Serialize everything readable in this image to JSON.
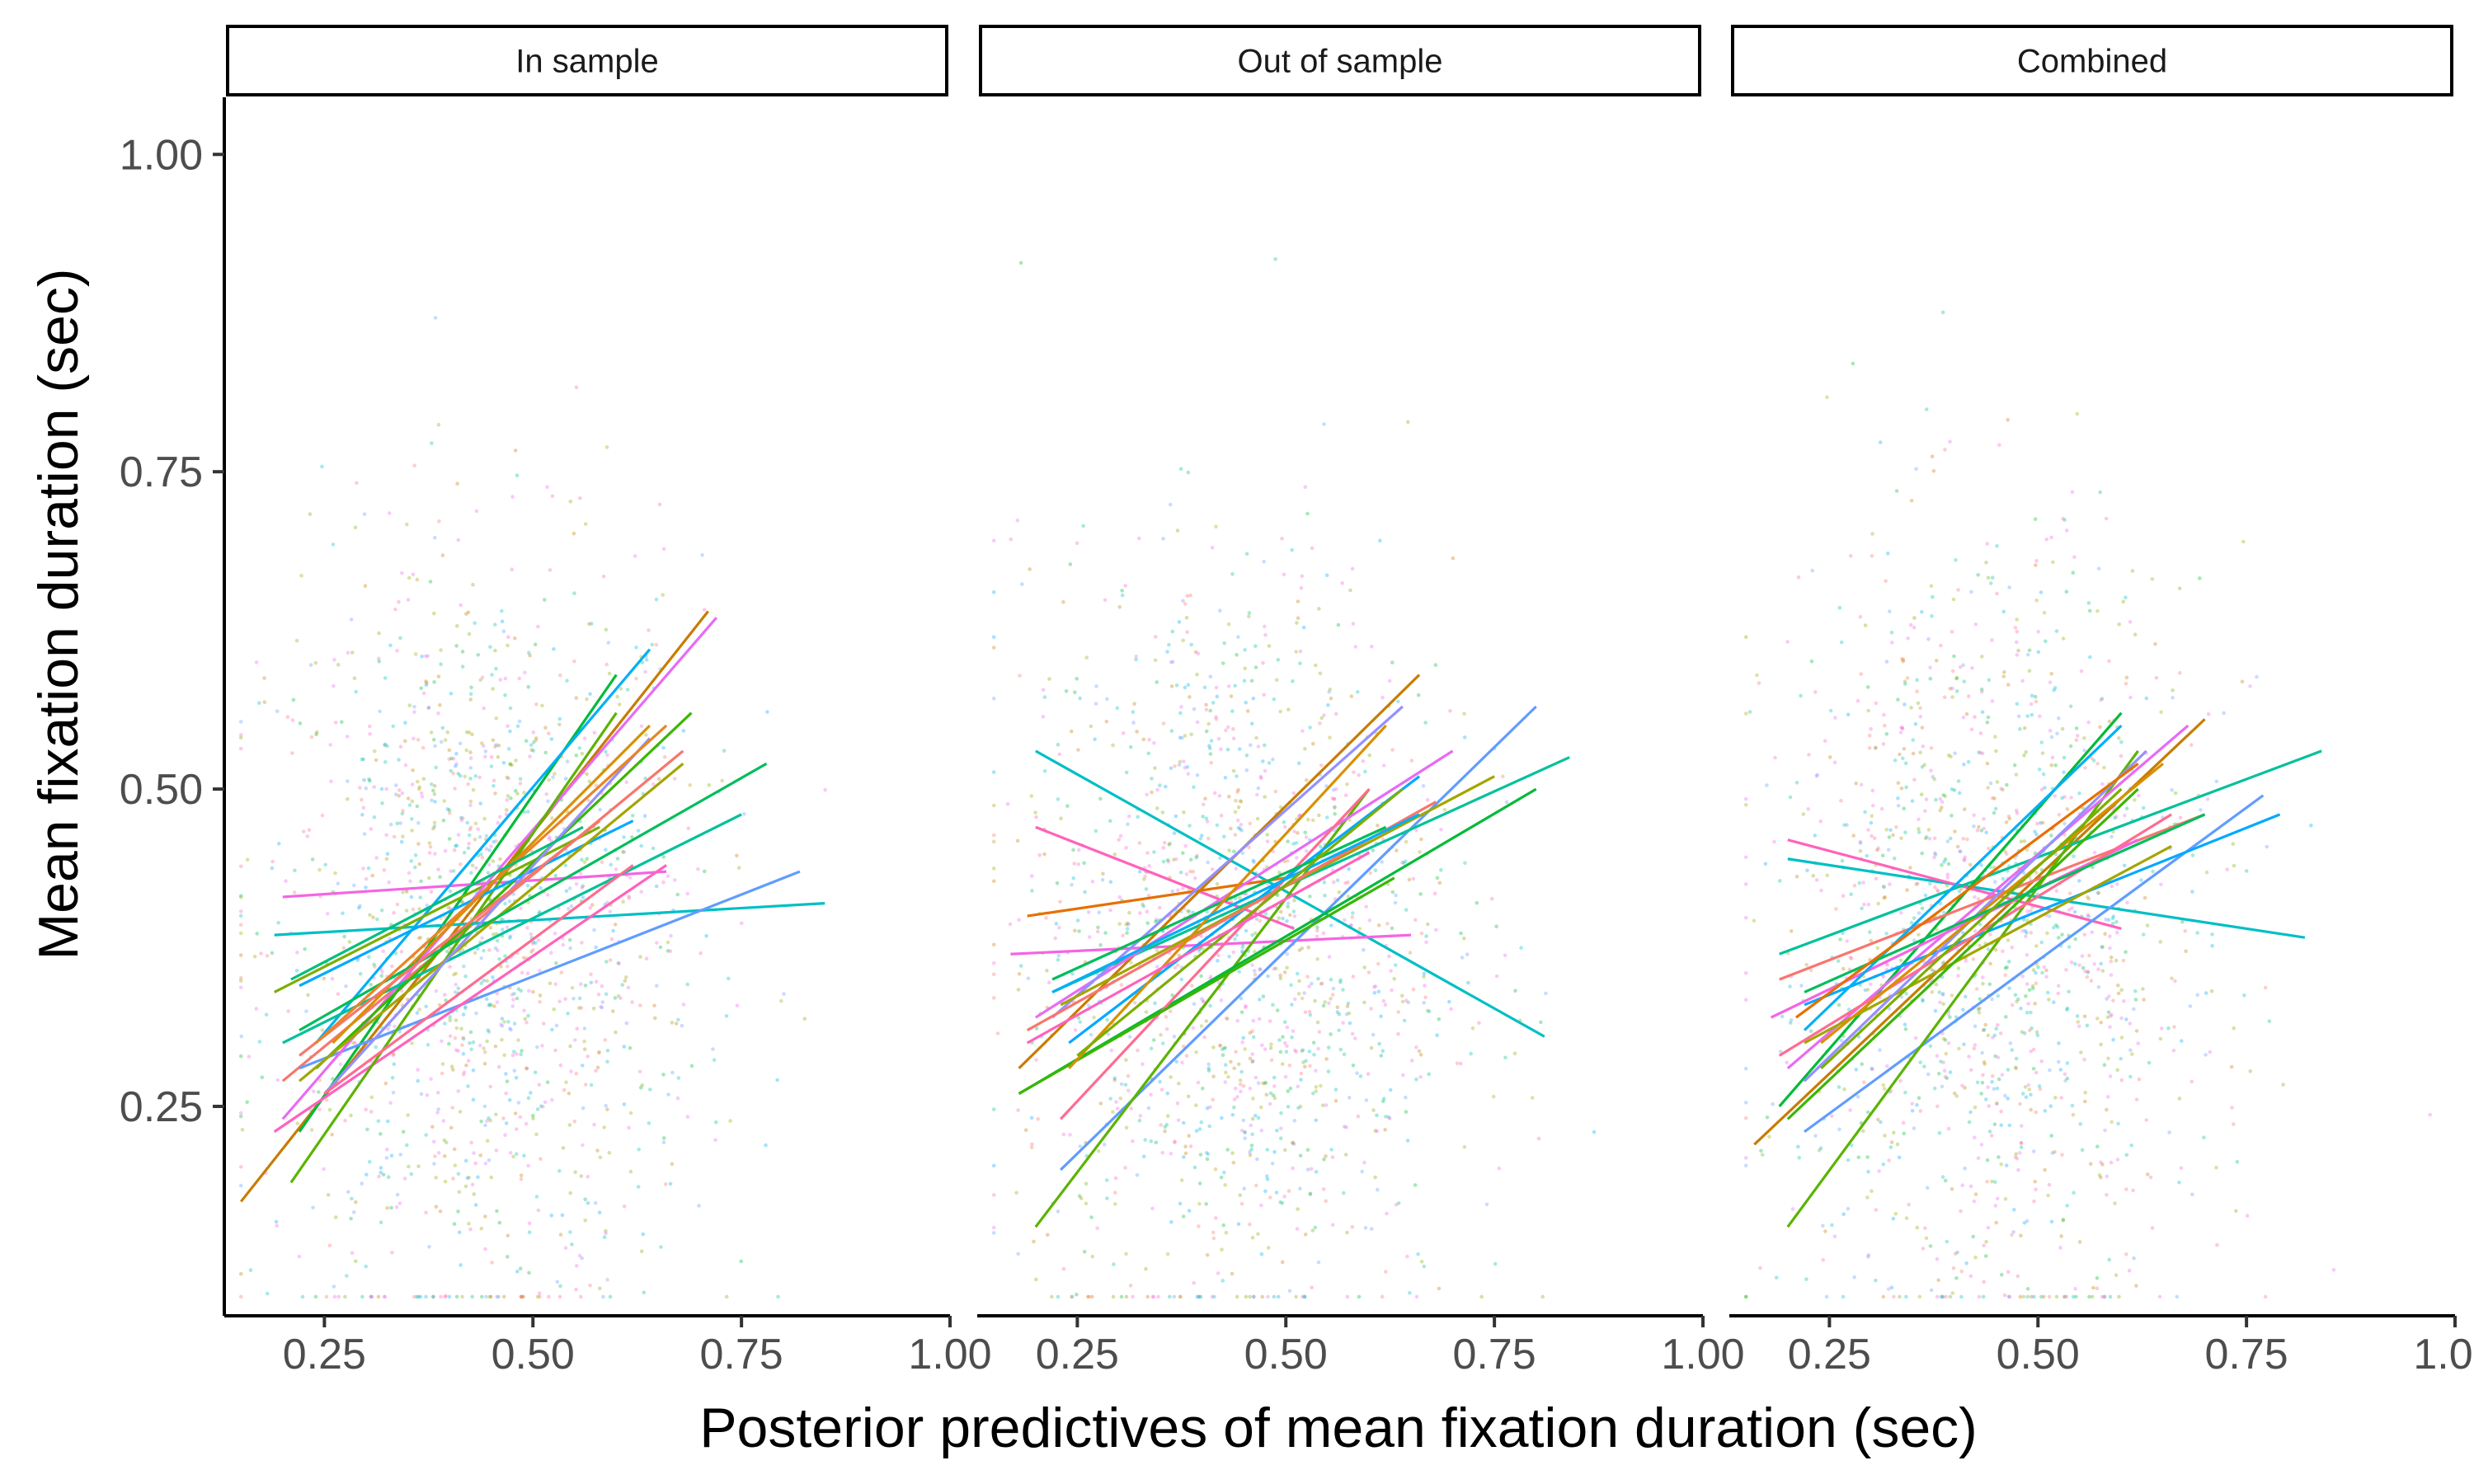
{
  "chart_data": {
    "type": "scatter",
    "xlabel": "Posterior predictives of mean fixation duration (sec)",
    "ylabel": "Mean fixation duration (sec)",
    "xlim": [
      0.13,
      1.0
    ],
    "ylim": [
      0.085,
      1.045
    ],
    "x_ticks": [
      "0.25",
      "0.50",
      "0.75",
      "1.00"
    ],
    "y_ticks": [
      "0.25",
      "0.50",
      "0.75",
      "1.00"
    ],
    "grid": false,
    "legend": "none",
    "description_of_points": "faint scatter of per-trial points colored by participant, plus per-participant linear regression lines",
    "panels": [
      {
        "title": "In sample",
        "lines": [
          {
            "color": "#C77C00",
            "x": [
              0.15,
              0.71
            ],
            "y": [
              0.175,
              0.64
            ]
          },
          {
            "color": "#00BA38",
            "x": [
              0.22,
              0.6
            ],
            "y": [
              0.23,
              0.59
            ]
          },
          {
            "color": "#F8766D",
            "x": [
              0.2,
              0.68
            ],
            "y": [
              0.27,
              0.53
            ]
          },
          {
            "color": "#00BFC4",
            "x": [
              0.19,
              0.85
            ],
            "y": [
              0.385,
              0.41
            ]
          },
          {
            "color": "#F564E3",
            "x": [
              0.2,
              0.66
            ],
            "y": [
              0.415,
              0.435
            ]
          },
          {
            "color": "#619CFF",
            "x": [
              0.22,
              0.82
            ],
            "y": [
              0.28,
              0.435
            ]
          },
          {
            "color": "#00B0F6",
            "x": [
              0.24,
              0.64
            ],
            "y": [
              0.3,
              0.61
            ]
          },
          {
            "color": "#7CAE00",
            "x": [
              0.19,
              0.58
            ],
            "y": [
              0.34,
              0.47
            ]
          },
          {
            "color": "#E76BF3",
            "x": [
              0.2,
              0.72
            ],
            "y": [
              0.24,
              0.635
            ]
          },
          {
            "color": "#00C19A",
            "x": [
              0.2,
              0.75
            ],
            "y": [
              0.3,
              0.48
            ]
          },
          {
            "color": "#FF62BC",
            "x": [
              0.19,
              0.66
            ],
            "y": [
              0.23,
              0.44
            ]
          },
          {
            "color": "#39B600",
            "x": [
              0.24,
              0.69
            ],
            "y": [
              0.28,
              0.56
            ]
          },
          {
            "color": "#5BB300",
            "x": [
              0.21,
              0.6
            ],
            "y": [
              0.19,
              0.56
            ]
          },
          {
            "color": "#00A9FF",
            "x": [
              0.22,
              0.62
            ],
            "y": [
              0.345,
              0.475
            ]
          },
          {
            "color": "#D89000",
            "x": [
              0.26,
              0.64
            ],
            "y": [
              0.3,
              0.55
            ]
          },
          {
            "color": "#A3A500",
            "x": [
              0.22,
              0.68
            ],
            "y": [
              0.27,
              0.52
            ]
          },
          {
            "color": "#9590FF",
            "x": [
              0.25,
              0.64
            ],
            "y": [
              0.26,
              0.54
            ]
          },
          {
            "color": "#00BD5C",
            "x": [
              0.22,
              0.78
            ],
            "y": [
              0.31,
              0.52
            ]
          },
          {
            "color": "#FF6C91",
            "x": [
              0.25,
              0.62
            ],
            "y": [
              0.26,
              0.44
            ]
          },
          {
            "color": "#F8766D",
            "x": [
              0.22,
              0.58
            ],
            "y": [
              0.29,
              0.475
            ]
          },
          {
            "color": "#E88526",
            "x": [
              0.24,
              0.66
            ],
            "y": [
              0.3,
              0.55
            ]
          },
          {
            "color": "#00BF7D",
            "x": [
              0.21,
              0.56
            ],
            "y": [
              0.35,
              0.47
            ]
          }
        ]
      },
      {
        "title": "Out of sample",
        "lines": [
          {
            "color": "#00BFC4",
            "x": [
              0.2,
              0.81
            ],
            "y": [
              0.53,
              0.305
            ]
          },
          {
            "color": "#FF62BC",
            "x": [
              0.2,
              0.51
            ],
            "y": [
              0.47,
              0.39
            ]
          },
          {
            "color": "#F564E3",
            "x": [
              0.17,
              0.65
            ],
            "y": [
              0.37,
              0.385
            ]
          },
          {
            "color": "#E76F00",
            "x": [
              0.19,
              0.5
            ],
            "y": [
              0.4,
              0.43
            ]
          },
          {
            "color": "#C77C00",
            "x": [
              0.18,
              0.66
            ],
            "y": [
              0.28,
              0.59
            ]
          },
          {
            "color": "#619CFF",
            "x": [
              0.23,
              0.8
            ],
            "y": [
              0.2,
              0.565
            ]
          },
          {
            "color": "#5BB300",
            "x": [
              0.2,
              0.6
            ],
            "y": [
              0.155,
              0.5
            ]
          },
          {
            "color": "#00BA38",
            "x": [
              0.18,
              0.8
            ],
            "y": [
              0.26,
              0.5
            ]
          },
          {
            "color": "#00C19A",
            "x": [
              0.22,
              0.84
            ],
            "y": [
              0.34,
              0.525
            ]
          },
          {
            "color": "#E76BF3",
            "x": [
              0.2,
              0.7
            ],
            "y": [
              0.32,
              0.53
            ]
          },
          {
            "color": "#FF6C91",
            "x": [
              0.23,
              0.6
            ],
            "y": [
              0.24,
              0.5
            ]
          },
          {
            "color": "#00A9FF",
            "x": [
              0.24,
              0.66
            ],
            "y": [
              0.3,
              0.51
            ]
          },
          {
            "color": "#9590FF",
            "x": [
              0.22,
              0.64
            ],
            "y": [
              0.32,
              0.565
            ]
          },
          {
            "color": "#A3A500",
            "x": [
              0.23,
              0.75
            ],
            "y": [
              0.33,
              0.51
            ]
          },
          {
            "color": "#39B600",
            "x": [
              0.18,
              0.63
            ],
            "y": [
              0.26,
              0.43
            ]
          },
          {
            "color": "#F8766D",
            "x": [
              0.19,
              0.68
            ],
            "y": [
              0.31,
              0.49
            ]
          },
          {
            "color": "#00BD5C",
            "x": [
              0.22,
              0.62
            ],
            "y": [
              0.35,
              0.47
            ]
          },
          {
            "color": "#D89000",
            "x": [
              0.24,
              0.62
            ],
            "y": [
              0.28,
              0.55
            ]
          },
          {
            "color": "#00B0F6",
            "x": [
              0.22,
              0.66
            ],
            "y": [
              0.34,
              0.48
            ]
          },
          {
            "color": "#7CAE00",
            "x": [
              0.25,
              0.64
            ],
            "y": [
              0.29,
              0.5
            ]
          },
          {
            "color": "#FF62BC",
            "x": [
              0.19,
              0.6
            ],
            "y": [
              0.3,
              0.45
            ]
          }
        ]
      },
      {
        "title": "Combined",
        "lines": [
          {
            "color": "#00BFC4",
            "x": [
              0.2,
              0.82
            ],
            "y": [
              0.445,
              0.383
            ]
          },
          {
            "color": "#FF62BC",
            "x": [
              0.2,
              0.6
            ],
            "y": [
              0.46,
              0.39
            ]
          },
          {
            "color": "#C77C00",
            "x": [
              0.16,
              0.7
            ],
            "y": [
              0.22,
              0.555
            ]
          },
          {
            "color": "#00C19A",
            "x": [
              0.19,
              0.84
            ],
            "y": [
              0.37,
              0.53
            ]
          },
          {
            "color": "#619CFF",
            "x": [
              0.22,
              0.77
            ],
            "y": [
              0.23,
              0.495
            ]
          },
          {
            "color": "#5BB300",
            "x": [
              0.2,
              0.62
            ],
            "y": [
              0.155,
              0.53
            ]
          },
          {
            "color": "#00BA38",
            "x": [
              0.19,
              0.6
            ],
            "y": [
              0.25,
              0.56
            ]
          },
          {
            "color": "#E76BF3",
            "x": [
              0.2,
              0.68
            ],
            "y": [
              0.28,
              0.55
            ]
          },
          {
            "color": "#F8766D",
            "x": [
              0.19,
              0.7
            ],
            "y": [
              0.35,
              0.48
            ]
          },
          {
            "color": "#00A9FF",
            "x": [
              0.22,
              0.79
            ],
            "y": [
              0.33,
              0.48
            ]
          },
          {
            "color": "#F564E3",
            "x": [
              0.18,
              0.62
            ],
            "y": [
              0.32,
              0.46
            ]
          },
          {
            "color": "#A3A500",
            "x": [
              0.22,
              0.66
            ],
            "y": [
              0.3,
              0.455
            ]
          },
          {
            "color": "#9590FF",
            "x": [
              0.22,
              0.63
            ],
            "y": [
              0.27,
              0.53
            ]
          },
          {
            "color": "#FF6C91",
            "x": [
              0.19,
              0.66
            ],
            "y": [
              0.29,
              0.48
            ]
          },
          {
            "color": "#39B600",
            "x": [
              0.2,
              0.62
            ],
            "y": [
              0.24,
              0.5
            ]
          },
          {
            "color": "#00B0F6",
            "x": [
              0.22,
              0.6
            ],
            "y": [
              0.31,
              0.55
            ]
          },
          {
            "color": "#D89000",
            "x": [
              0.24,
              0.65
            ],
            "y": [
              0.3,
              0.52
            ]
          },
          {
            "color": "#00BD5C",
            "x": [
              0.22,
              0.7
            ],
            "y": [
              0.34,
              0.48
            ]
          },
          {
            "color": "#7CAE00",
            "x": [
              0.24,
              0.6
            ],
            "y": [
              0.28,
              0.5
            ]
          },
          {
            "color": "#E76F00",
            "x": [
              0.21,
              0.62
            ],
            "y": [
              0.32,
              0.52
            ]
          }
        ]
      }
    ],
    "point_colors": [
      "#F8766D",
      "#C77C00",
      "#7CAE00",
      "#00BA38",
      "#00C19A",
      "#00BFC4",
      "#00A9FF",
      "#619CFF",
      "#E76BF3",
      "#FF62BC",
      "#F564E3",
      "#A3A500"
    ]
  }
}
